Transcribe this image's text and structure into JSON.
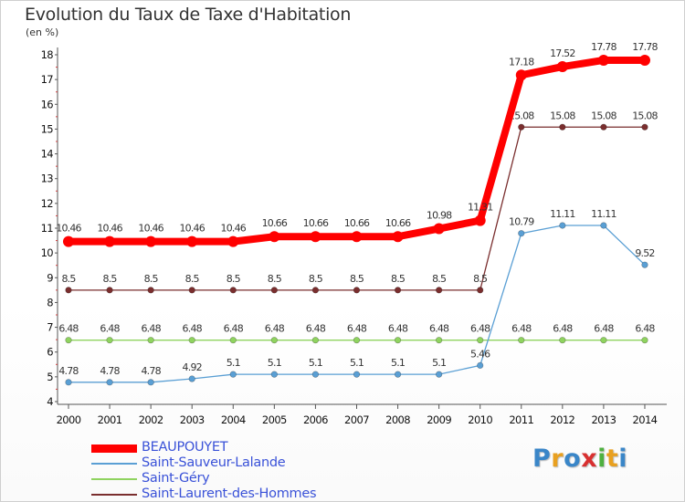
{
  "header": {
    "title": "Evolution du Taux de Taxe d'Habitation",
    "unit": "(en %)"
  },
  "logo": {
    "text": "Proxiti",
    "letters": [
      "P",
      "r",
      "o",
      "x",
      "i",
      "t",
      "i"
    ],
    "colors": [
      "#3a86c8",
      "#e8a020",
      "#3a86c8",
      "#d83030",
      "#4fb040",
      "#e8a020",
      "#3a86c8"
    ]
  },
  "chart_data": {
    "type": "line",
    "title": "Evolution du Taux de Taxe d'Habitation",
    "ylabel": "(en %)",
    "xlabel": "",
    "x": [
      "2000",
      "2001",
      "2002",
      "2003",
      "2004",
      "2005",
      "2006",
      "2007",
      "2008",
      "2009",
      "2010",
      "2011",
      "2012",
      "2013",
      "2014"
    ],
    "ylim": [
      4,
      18
    ],
    "yticks": [
      4,
      5,
      6,
      7,
      8,
      9,
      10,
      11,
      12,
      13,
      14,
      15,
      16,
      17,
      18
    ],
    "grid": false,
    "legend_position": "bottom-left",
    "series": [
      {
        "name": "Saint-Laurent-des-Hommes",
        "color": "#7a2e2e",
        "values": [
          8.5,
          8.5,
          8.5,
          8.5,
          8.5,
          8.5,
          8.5,
          8.5,
          8.5,
          8.5,
          8.5,
          15.08,
          15.08,
          15.08,
          15.08
        ],
        "labels": [
          "8.5",
          "8.5",
          "8.5",
          "8.5",
          "8.5",
          "8.5",
          "8.5",
          "8.5",
          "8.5",
          "8.5",
          "8.5",
          "15.08",
          "15.08",
          "15.08",
          "15.08"
        ]
      },
      {
        "name": "Saint-Géry",
        "color": "#8fd35f",
        "values": [
          6.48,
          6.48,
          6.48,
          6.48,
          6.48,
          6.48,
          6.48,
          6.48,
          6.48,
          6.48,
          6.48,
          6.48,
          6.48,
          6.48,
          6.48
        ],
        "labels": [
          "6.48",
          "6.48",
          "6.48",
          "6.48",
          "6.48",
          "6.48",
          "6.48",
          "6.48",
          "6.48",
          "6.48",
          "6.48",
          "6.48",
          "6.48",
          "6.48",
          "6.48"
        ]
      },
      {
        "name": "Saint-Sauveur-Lalande",
        "color": "#5a9fd4",
        "values": [
          4.78,
          4.78,
          4.78,
          4.92,
          5.1,
          5.1,
          5.1,
          5.1,
          5.1,
          5.1,
          5.46,
          10.79,
          11.11,
          11.11,
          9.52
        ],
        "labels": [
          "4.78",
          "4.78",
          "4.78",
          "4.92",
          "5.1",
          "5.1",
          "5.1",
          "5.1",
          "5.1",
          "5.1",
          "5.46",
          "10.79",
          "11.11",
          "11.11",
          "9.52"
        ]
      },
      {
        "name": "BEAUPOUYET",
        "color": "#ff0000",
        "values": [
          10.46,
          10.46,
          10.46,
          10.46,
          10.46,
          10.66,
          10.66,
          10.66,
          10.66,
          10.98,
          11.31,
          17.18,
          17.52,
          17.78,
          17.78
        ],
        "labels": [
          "10.46",
          "10.46",
          "10.46",
          "10.46",
          "10.46",
          "10.66",
          "10.66",
          "10.66",
          "10.66",
          "10.98",
          "11.31",
          "17.18",
          "17.52",
          "17.78",
          "17.78"
        ]
      }
    ]
  },
  "legend": {
    "items": [
      {
        "label": "BEAUPOUYET",
        "color": "#ff0000"
      },
      {
        "label": "Saint-Sauveur-Lalande",
        "color": "#5a9fd4"
      },
      {
        "label": "Saint-Géry",
        "color": "#8fd35f"
      },
      {
        "label": "Saint-Laurent-des-Hommes",
        "color": "#7a2e2e"
      }
    ]
  }
}
